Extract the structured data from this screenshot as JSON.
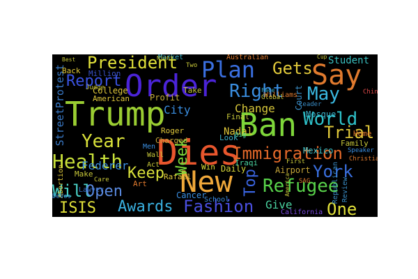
{
  "word_cloud": {
    "background": "#000000",
    "words": [
      {
        "text": "Trump",
        "color": "#9acd32"
      },
      {
        "text": "Order",
        "color": "#4b24d8"
      },
      {
        "text": "Dies",
        "color": "#e8562d"
      },
      {
        "text": "Ban",
        "color": "#7ed63a"
      },
      {
        "text": "New",
        "color": "#f0a83a"
      },
      {
        "text": "Say",
        "color": "#e07a2e"
      },
      {
        "text": "Plan",
        "color": "#3a6fe0"
      },
      {
        "text": "Immigration",
        "color": "#e66a2a"
      },
      {
        "text": "Fashion",
        "color": "#4a4fe0"
      },
      {
        "text": "Refugee",
        "color": "#58d24a"
      },
      {
        "text": "Health",
        "color": "#c8e03a"
      },
      {
        "text": "World",
        "color": "#2ec0c8"
      },
      {
        "text": "Right",
        "color": "#3a8ee0"
      },
      {
        "text": "President",
        "color": "#e0e03a"
      },
      {
        "text": "Report",
        "color": "#3a52e0"
      },
      {
        "text": "Year",
        "color": "#d8e03a"
      },
      {
        "text": "Keep",
        "color": "#d8e03a"
      },
      {
        "text": "May",
        "color": "#3ab8e0"
      },
      {
        "text": "Trial",
        "color": "#e0c83a"
      },
      {
        "text": "York",
        "color": "#3a70e0"
      },
      {
        "text": "Awards",
        "color": "#3ab0e0"
      },
      {
        "text": "Will",
        "color": "#4ad2c8"
      },
      {
        "text": "Open",
        "color": "#5a8ae0"
      },
      {
        "text": "ISIS",
        "color": "#e0e03a"
      },
      {
        "text": "Week",
        "color": "#7ad83a"
      },
      {
        "text": "Top",
        "color": "#3a64e0"
      },
      {
        "text": "Gets",
        "color": "#e0c83a"
      },
      {
        "text": "One",
        "color": "#e0e03a"
      },
      {
        "text": "Change",
        "color": "#d8c83a"
      },
      {
        "text": "Federer",
        "color": "#3a8ee0"
      },
      {
        "text": "Give",
        "color": "#4ad2a0"
      },
      {
        "text": "Student",
        "color": "#3ac0c0"
      },
      {
        "text": "StreetProtest",
        "color": "#3a7ac8"
      },
      {
        "text": "City",
        "color": "#3a8ee0"
      },
      {
        "text": "College",
        "color": "#e0c83a"
      },
      {
        "text": "American",
        "color": "#e0c83a"
      },
      {
        "text": "Profit",
        "color": "#c8b03a"
      },
      {
        "text": "Nadal",
        "color": "#e0c83a"
      },
      {
        "text": "Daily",
        "color": "#d8d83a"
      },
      {
        "text": "Airport",
        "color": "#c8a83a"
      },
      {
        "text": "Court",
        "color": "#3a8ec8"
      },
      {
        "text": "Mosque",
        "color": "#3ab0c8"
      },
      {
        "text": "Family",
        "color": "#c8c83a"
      },
      {
        "text": "Home",
        "color": "#e07a2e"
      },
      {
        "text": "Mexico",
        "color": "#3ac0c8"
      },
      {
        "text": "Iraqi",
        "color": "#4ad2a0"
      },
      {
        "text": "Cancer",
        "color": "#3a8ee0"
      },
      {
        "text": "Art",
        "color": "#e07a2e"
      },
      {
        "text": "Roger",
        "color": "#e0c83a"
      },
      {
        "text": "Charged",
        "color": "#c8a83a"
      },
      {
        "text": "Lawyer",
        "color": "#3a70c8"
      },
      {
        "text": "Make",
        "color": "#c8c83a"
      },
      {
        "text": "Rafael",
        "color": "#e0c83a"
      },
      {
        "text": "Win",
        "color": "#e0e03a"
      },
      {
        "text": "Look",
        "color": "#3ab0c8"
      },
      {
        "text": "Final",
        "color": "#c8c83a"
      },
      {
        "text": "Take",
        "color": "#c8c83a"
      },
      {
        "text": "Men",
        "color": "#3a8ee0"
      },
      {
        "text": "Wall",
        "color": "#c8c83a"
      },
      {
        "text": "Act",
        "color": "#c8c83a"
      },
      {
        "text": "California",
        "color": "#7a4ae0"
      },
      {
        "text": "School",
        "color": "#3a8ee0"
      },
      {
        "text": "Republican",
        "color": "#3a8ec8"
      },
      {
        "text": "Review",
        "color": "#3a8ec8"
      },
      {
        "text": "Abortion",
        "color": "#e0c83a"
      },
      {
        "text": "Australian",
        "color": "#e07a2e"
      },
      {
        "text": "Williams",
        "color": "#e07a2e"
      },
      {
        "text": "Million",
        "color": "#3a52c8"
      },
      {
        "text": "Back",
        "color": "#e0c83a"
      },
      {
        "text": "Judge",
        "color": "#c8c83a"
      },
      {
        "text": "Market",
        "color": "#3ab0c8"
      },
      {
        "text": "Two",
        "color": "#c8c83a"
      },
      {
        "text": "Global",
        "color": "#c8c83a"
      },
      {
        "text": "Leader",
        "color": "#3a8ec8"
      },
      {
        "text": "China",
        "color": "#e04a4a"
      },
      {
        "text": "Speaker",
        "color": "#3a8ee0"
      },
      {
        "text": "Christian",
        "color": "#e07a2e"
      },
      {
        "text": "First",
        "color": "#c8c83a"
      },
      {
        "text": "SAG",
        "color": "#e07a2e"
      },
      {
        "text": "America",
        "color": "#c8c83a"
      },
      {
        "text": "DeVos",
        "color": "#3a8ee0"
      },
      {
        "text": "Big",
        "color": "#4ad2a0"
      },
      {
        "text": "Care",
        "color": "#c8c83a"
      },
      {
        "text": "Best",
        "color": "#c8c83a"
      },
      {
        "text": "Night",
        "color": "#c8c83a"
      },
      {
        "text": "Cup",
        "color": "#c8c83a"
      },
      {
        "text": "Face",
        "color": "#3ab0c8"
      }
    ]
  }
}
